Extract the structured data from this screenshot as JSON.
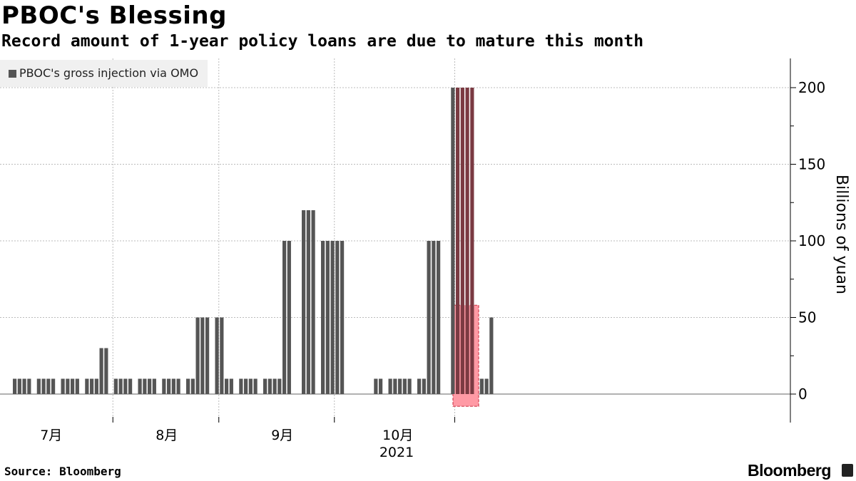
{
  "header": {
    "title": "PBOC's Blessing",
    "subtitle": "Record amount of 1-year policy loans are due to mature this month"
  },
  "footer": {
    "source": "Source: Bloomberg",
    "brand": "Bloomberg"
  },
  "chart_data": {
    "type": "bar",
    "legend": [
      "PBOC's gross injection via OMO"
    ],
    "ylabel": "Billions of yuan",
    "ylim": [
      -10,
      220
    ],
    "yticks": [
      0,
      50,
      100,
      150,
      200
    ],
    "year_label": "2021",
    "month_labels": [
      {
        "label": "7月",
        "bar_index": 5
      },
      {
        "label": "8月",
        "bar_index": 29
      },
      {
        "label": "9月",
        "bar_index": 53
      },
      {
        "label": "10月",
        "bar_index": 77
      }
    ],
    "month_boundaries": [
      21,
      43,
      67,
      92
    ],
    "highlight": {
      "from_index": 92,
      "to_index": 96,
      "color": "#ff9aa5"
    },
    "colors": {
      "bar": "#555555",
      "highlight_bar": "#7a3a42",
      "grid": "#bbbbbb"
    },
    "series": [
      {
        "name": "PBOC's gross injection via OMO",
        "values": [
          10,
          10,
          10,
          10,
          0,
          10,
          10,
          10,
          10,
          0,
          10,
          10,
          10,
          10,
          0,
          10,
          10,
          10,
          30,
          30,
          0,
          10,
          10,
          10,
          10,
          0,
          10,
          10,
          10,
          10,
          0,
          10,
          10,
          10,
          10,
          0,
          10,
          10,
          50,
          50,
          50,
          0,
          50,
          50,
          10,
          10,
          0,
          10,
          10,
          10,
          10,
          0,
          10,
          10,
          10,
          10,
          100,
          100,
          0,
          0,
          120,
          120,
          120,
          0,
          100,
          100,
          100,
          100,
          100,
          0,
          0,
          0,
          0,
          0,
          0,
          10,
          10,
          0,
          10,
          10,
          10,
          10,
          10,
          0,
          10,
          10,
          100,
          100,
          100,
          0,
          0,
          200,
          200,
          200,
          200,
          200,
          0,
          10,
          10,
          50,
          0,
          0
        ]
      }
    ]
  }
}
